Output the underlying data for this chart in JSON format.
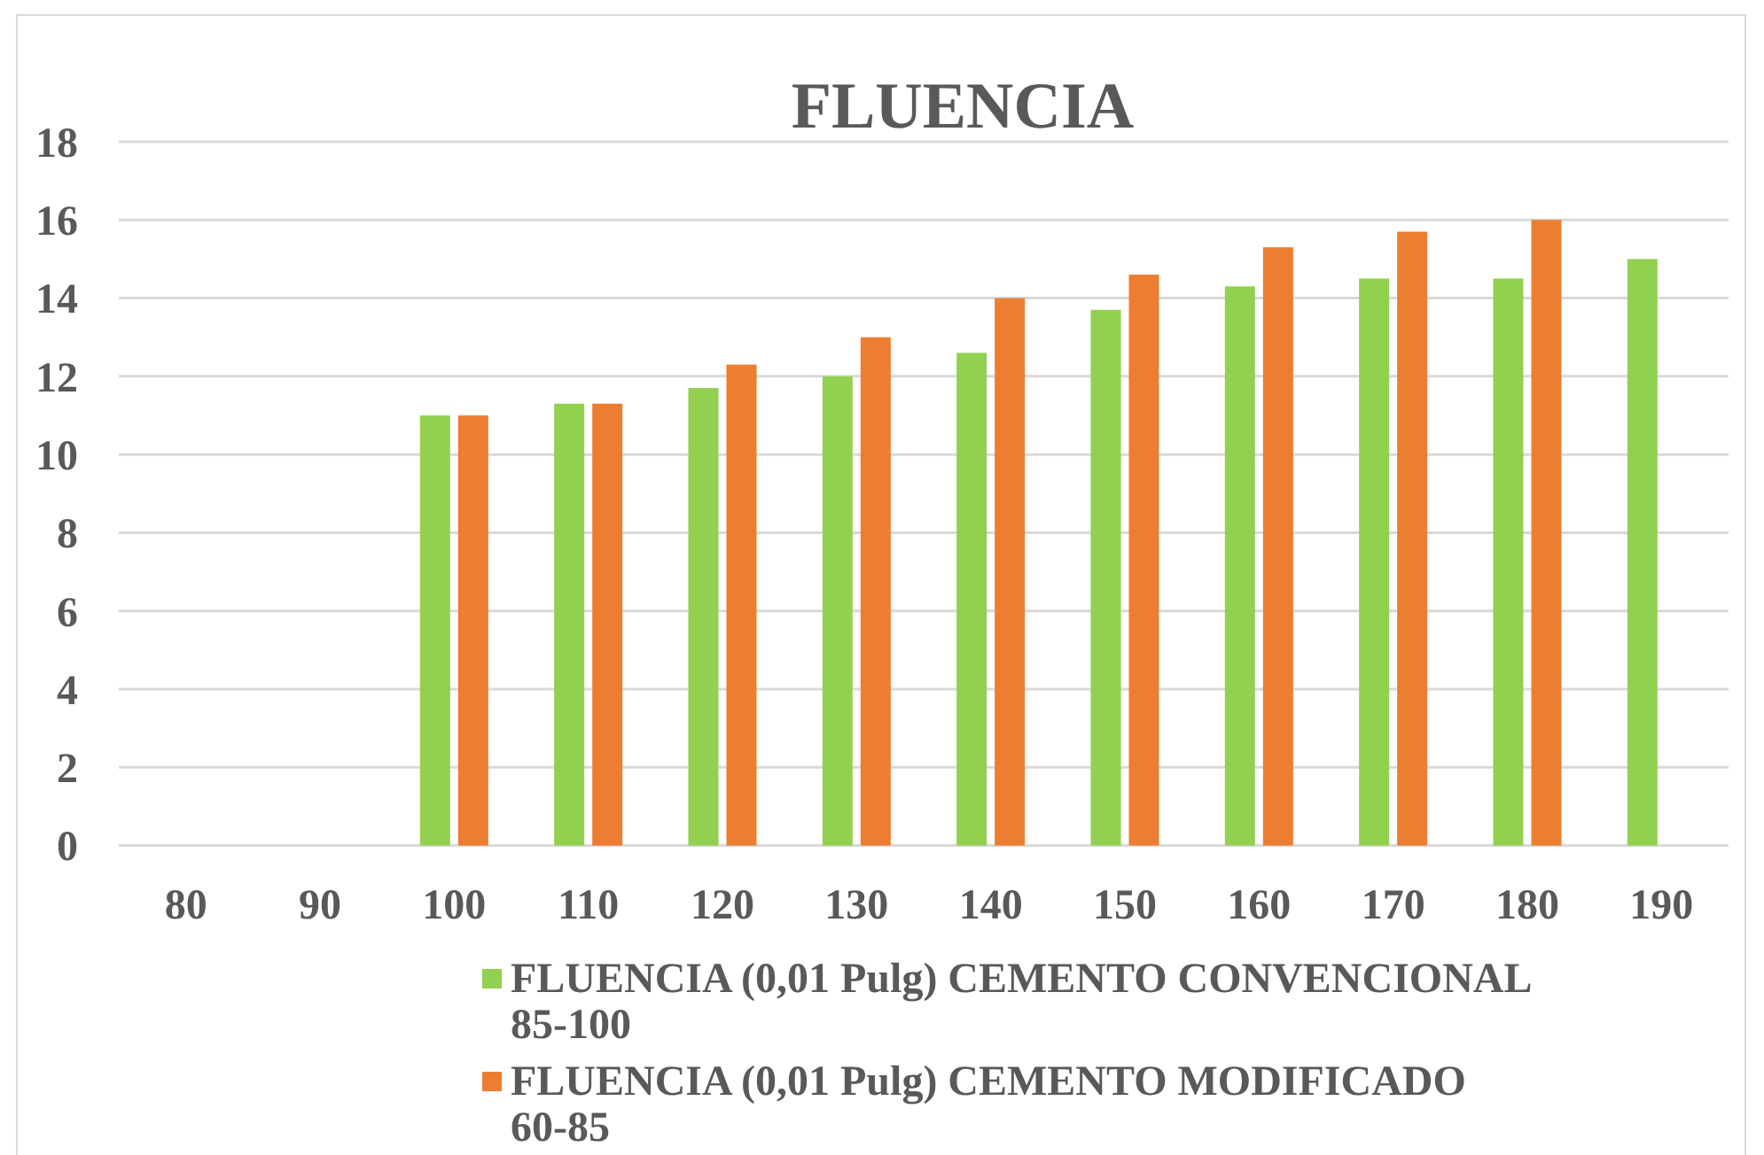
{
  "chart_data": {
    "type": "bar",
    "title": "FLUENCIA",
    "categories": [
      "80",
      "90",
      "100",
      "110",
      "120",
      "130",
      "140",
      "150",
      "160",
      "170",
      "180",
      "190"
    ],
    "series": [
      {
        "name": "FLUENCIA (0,01 Pulg) CEMENTO CONVENCIONAL 85-100",
        "color": "#92d050",
        "values": [
          null,
          null,
          11,
          11.3,
          11.7,
          12,
          12.6,
          13.7,
          14.3,
          14.5,
          14.5,
          15
        ]
      },
      {
        "name": "FLUENCIA (0,01 Pulg) CEMENTO MODIFICADO 60-85",
        "color": "#ed7d31",
        "values": [
          null,
          null,
          11,
          11.3,
          12.3,
          13,
          14,
          14.6,
          15.3,
          15.7,
          16,
          null
        ]
      }
    ],
    "ylim": [
      0,
      18
    ],
    "yticks": [
      0,
      2,
      4,
      6,
      8,
      10,
      12,
      14,
      16,
      18
    ],
    "grid": "y",
    "legend": "bottom"
  }
}
